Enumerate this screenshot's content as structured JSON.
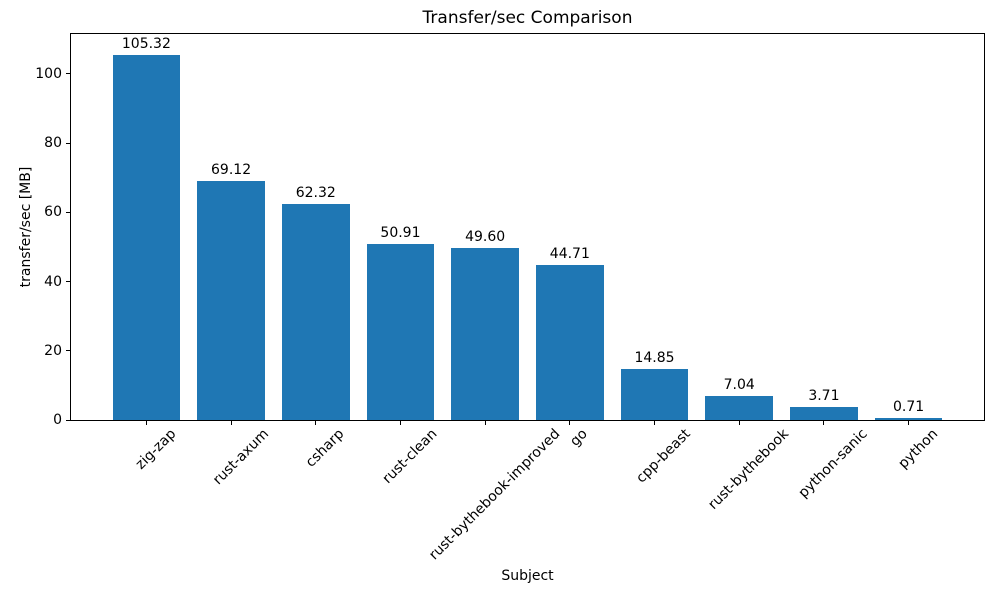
{
  "chart_data": {
    "type": "bar",
    "title": "Transfer/sec Comparison",
    "xlabel": "Subject",
    "ylabel": "transfer/sec [MB]",
    "categories": [
      "zig-zap",
      "rust-axum",
      "csharp",
      "rust-clean",
      "rust-bythebook-improved",
      "go",
      "cpp-beast",
      "rust-bythebook",
      "python-sanic",
      "python"
    ],
    "values": [
      105.32,
      69.12,
      62.32,
      50.91,
      49.6,
      44.71,
      14.85,
      7.04,
      3.71,
      0.71
    ],
    "value_labels": [
      "105.32",
      "69.12",
      "62.32",
      "50.91",
      "49.60",
      "44.71",
      "14.85",
      "7.04",
      "3.71",
      "0.71"
    ],
    "yticks": [
      "0",
      "20",
      "40",
      "60",
      "80",
      "100"
    ],
    "ylim": [
      0,
      111.5
    ],
    "xtick_rotation_deg": 45,
    "bar_color": "#1f77b4",
    "text_color": "#000000",
    "spine_color": "#000000",
    "grid": false,
    "legend": false
  }
}
